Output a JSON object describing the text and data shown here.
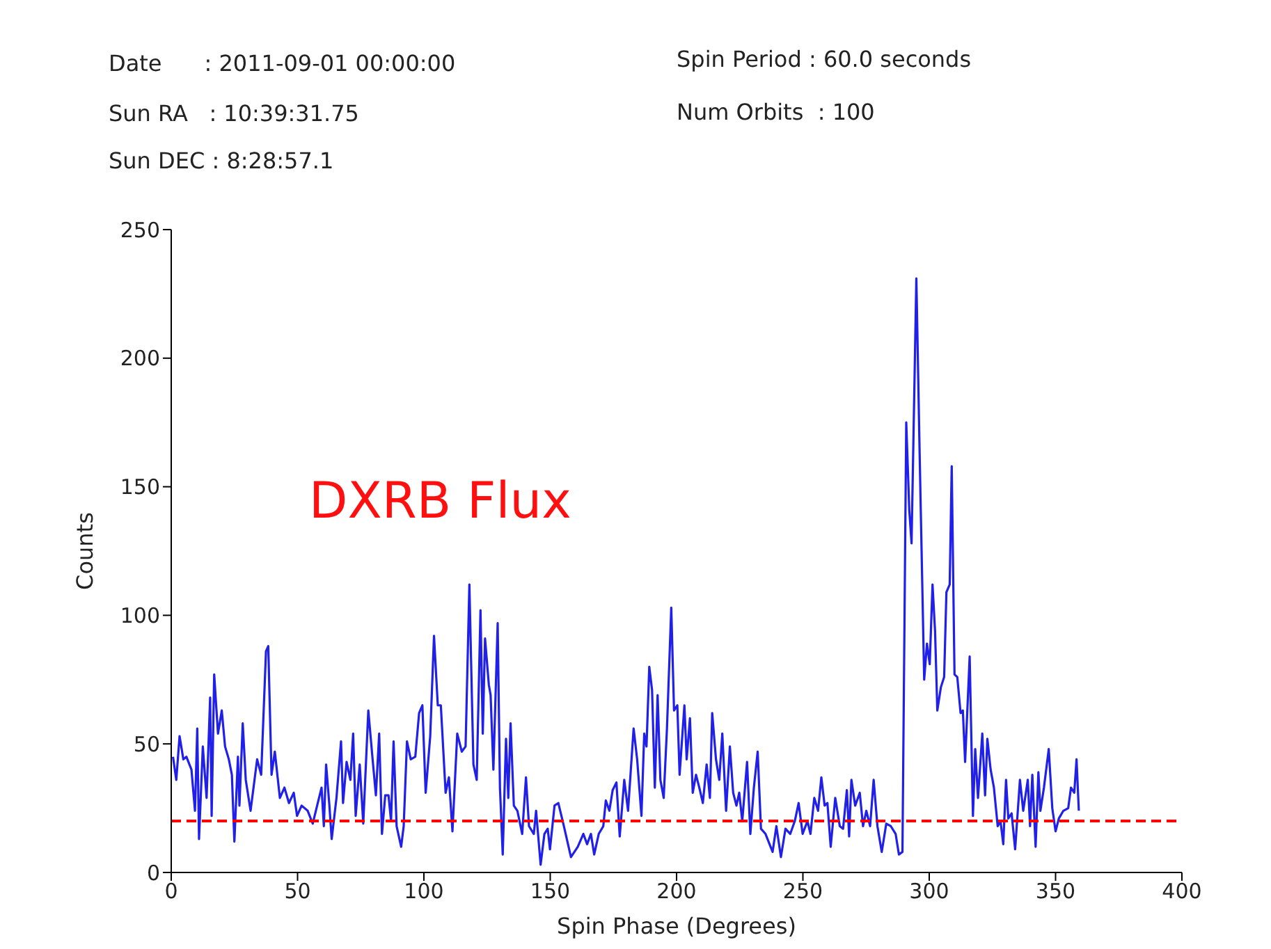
{
  "chart_data": {
    "type": "line",
    "xlabel": "Spin Phase (Degrees)",
    "ylabel": "Counts",
    "annotations": [
      "Date      : 2011-09-01 00:00:00",
      "Sun RA   : 10:39:31.75",
      "Sun DEC : 8:28:57.1",
      "Spin Period : 60.0 seconds",
      "Num Orbits  : 100",
      "DXRB Flux"
    ],
    "xlim": [
      0,
      400
    ],
    "xticks": [
      0,
      50,
      100,
      150,
      200,
      250,
      300,
      350,
      400
    ],
    "ylim": [
      0,
      250
    ],
    "yticks": [
      0,
      50,
      100,
      150,
      200,
      250
    ],
    "marker": "none",
    "line_style": "solid",
    "ref_lines": [
      {
        "axis": "y",
        "value": 20,
        "color": "#ff0000",
        "line_style": "dashed"
      }
    ],
    "series": [
      {
        "color": "#2020e8",
        "x": [
          0.7,
          2,
          3.3,
          4.8,
          6,
          8,
          9.4,
          10.3,
          11,
          12.5,
          14,
          15.4,
          16,
          17,
          18.5,
          20,
          21.3,
          22.8,
          24,
          25,
          26.4,
          27,
          28.3,
          29.5,
          31.4,
          34,
          35.6,
          37.5,
          38.4,
          39.7,
          41,
          43,
          44.8,
          46.6,
          48.5,
          49.8,
          51.6,
          54,
          56,
          58,
          59.5,
          60.4,
          61.3,
          62.6,
          63.5,
          65.4,
          67.2,
          68,
          69.4,
          70.9,
          72,
          73,
          74.6,
          76,
          78,
          79.7,
          81,
          82.3,
          83.4,
          84.7,
          86,
          87,
          88,
          89.2,
          91,
          92,
          93.3,
          94.8,
          96.6,
          98.1,
          99.4,
          100.7,
          102.5,
          104,
          105.5,
          106.7,
          108.6,
          109.9,
          111.3,
          113.2,
          115,
          116.5,
          118,
          119.6,
          120.9,
          122.4,
          123.3,
          124.2,
          125.7,
          126.4,
          127.5,
          129.2,
          130.1,
          131.2,
          132.5,
          133.4,
          134.3,
          135.6,
          137,
          138.9,
          140.4,
          141.6,
          143.5,
          144.4,
          146.2,
          147.7,
          149,
          149.9,
          151.7,
          153.2,
          155.4,
          158.2,
          160.9,
          163.1,
          164.6,
          166.1,
          167.4,
          169.2,
          171,
          172,
          173.4,
          174.7,
          176.2,
          177.5,
          179.3,
          180.8,
          183,
          184.4,
          186.1,
          187.2,
          188.1,
          189.2,
          190.3,
          191.4,
          192.5,
          193.6,
          194.9,
          196.2,
          197.9,
          199,
          200.3,
          201.2,
          203.1,
          204,
          205.3,
          206.4,
          207.7,
          209,
          210.4,
          211.9,
          213.2,
          214.1,
          215.6,
          216.9,
          218.1,
          219.6,
          221.1,
          222.4,
          223.7,
          224.8,
          226,
          227.9,
          229.2,
          230.6,
          232.1,
          233.4,
          235.2,
          238,
          239.5,
          241.3,
          243.1,
          245,
          246.8,
          248.3,
          249.9,
          251.8,
          253,
          254.5,
          256,
          257.3,
          258.6,
          259.7,
          261,
          262.8,
          264.6,
          265.9,
          267.4,
          268.3,
          269.2,
          270.7,
          272.5,
          273.8,
          275.1,
          276.6,
          278,
          279.5,
          281.2,
          283,
          284.8,
          286.7,
          288,
          289.4,
          290.9,
          292.1,
          293,
          294.9,
          296.2,
          298,
          299.1,
          300.2,
          301.3,
          302.3,
          303.2,
          304.6,
          305.9,
          306.8,
          308.1,
          308.9,
          310,
          311.1,
          312.4,
          313.3,
          314.2,
          316,
          317.3,
          318.2,
          319.3,
          321,
          322.1,
          323,
          324.3,
          325.6,
          327.1,
          328.2,
          329.3,
          330.4,
          331.3,
          332.6,
          334,
          335.9,
          337.2,
          339,
          339.9,
          340.8,
          342.1,
          343.2,
          344,
          345.4,
          347.3,
          348.7,
          350,
          351.3,
          353.1,
          355,
          356.1,
          357.4,
          358.3,
          359.2
        ],
        "values": [
          45,
          36,
          53,
          44,
          45,
          40,
          24,
          56,
          13,
          49,
          29,
          68,
          22,
          77,
          54,
          63,
          49,
          44,
          38,
          12,
          45,
          26,
          58,
          36,
          24,
          44,
          38,
          86,
          88,
          38,
          47,
          29,
          33,
          27,
          31,
          22,
          26,
          24,
          19,
          27,
          33,
          18,
          42,
          26,
          13,
          29,
          51,
          27,
          43,
          36,
          54,
          22,
          42,
          19,
          63,
          44,
          30,
          54,
          15,
          30,
          30,
          20,
          51,
          18,
          10,
          18,
          51,
          44,
          45,
          62,
          65,
          31,
          53,
          92,
          65,
          65,
          31,
          37,
          16,
          54,
          47,
          49,
          112,
          42,
          36,
          102,
          54,
          91,
          73,
          69,
          40,
          97,
          33,
          7,
          52,
          29,
          58,
          26,
          24,
          15,
          37,
          18,
          15,
          24,
          3,
          15,
          17,
          9,
          26,
          27,
          18,
          6,
          10,
          15,
          11,
          15,
          7,
          15,
          18,
          28,
          24,
          32,
          35,
          14,
          36,
          24,
          56,
          44,
          22,
          54,
          49,
          80,
          71,
          33,
          69,
          36,
          29,
          56,
          103,
          63,
          65,
          38,
          65,
          44,
          60,
          31,
          38,
          33,
          27,
          42,
          29,
          62,
          44,
          36,
          54,
          24,
          49,
          31,
          26,
          31,
          20,
          43,
          15,
          33,
          47,
          17,
          15,
          8,
          18,
          6,
          17,
          15,
          20,
          27,
          15,
          20,
          15,
          29,
          24,
          37,
          26,
          27,
          10,
          29,
          18,
          17,
          32,
          14,
          36,
          26,
          31,
          18,
          24,
          18,
          36,
          18,
          8,
          19,
          18,
          15,
          7,
          8,
          175,
          141,
          128,
          231,
          163,
          75,
          89,
          81,
          112,
          94,
          63,
          72,
          76,
          109,
          112,
          158,
          77,
          76,
          62,
          63,
          43,
          84,
          22,
          48,
          29,
          54,
          30,
          52,
          40,
          33,
          18,
          20,
          11,
          36,
          21,
          23,
          9,
          36,
          24,
          36,
          18,
          38,
          10,
          39,
          24,
          33,
          48,
          25,
          16,
          21,
          24,
          25,
          33,
          31,
          44,
          24
        ]
      }
    ]
  }
}
